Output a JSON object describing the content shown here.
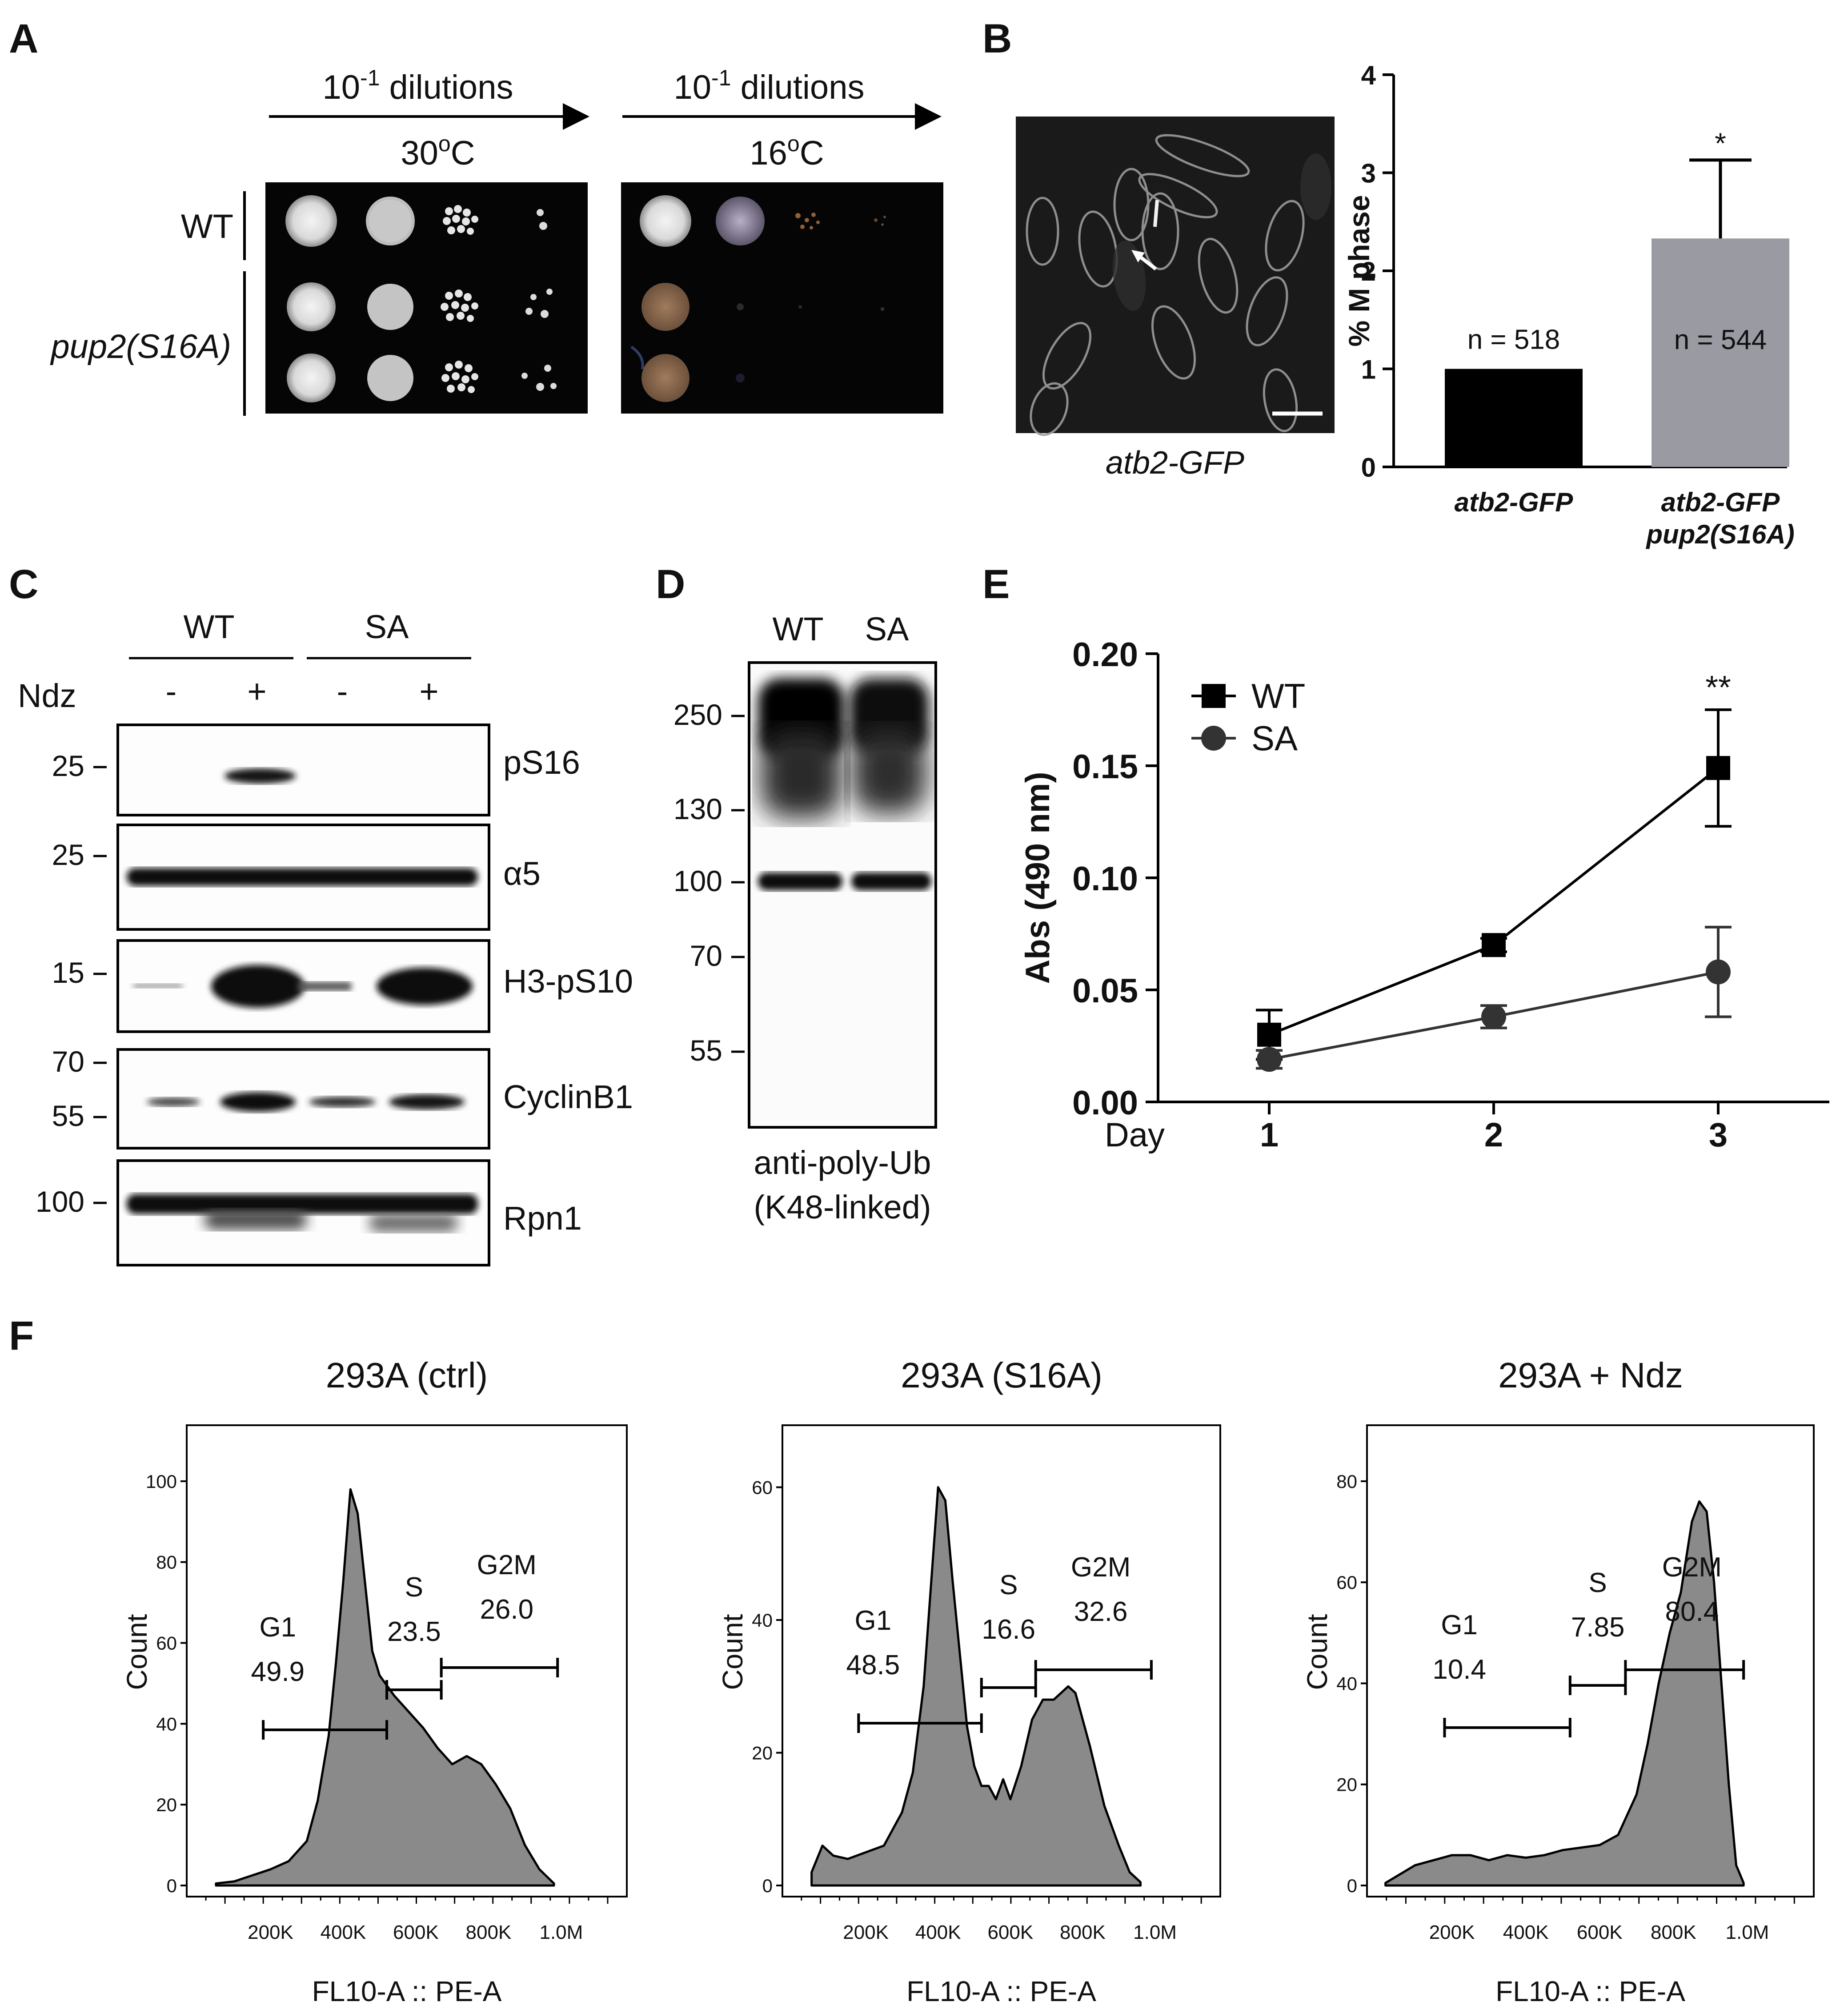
{
  "panel_letters": {
    "a": "A",
    "b": "B",
    "c": "C",
    "d": "D",
    "e": "E",
    "f": "F"
  },
  "panel_a": {
    "dilution_base": "10",
    "dilution_exp": "-1",
    "dilution_text": " dilutions",
    "temp_left": "30",
    "temp_right": "16",
    "degree": "o",
    "temp_unit": "C",
    "strain_wt": "WT",
    "strain_mut": "pup2(S16A)"
  },
  "panel_b": {
    "micro_caption": "atb2-GFP",
    "chart_data": {
      "type": "bar",
      "categories": [
        "atb2-GFP",
        "atb2-GFP pup2(S16A)"
      ],
      "category_lines": [
        [
          "atb2-GFP"
        ],
        [
          "atb2-GFP",
          "pup2(S16A)"
        ]
      ],
      "values": [
        1.0,
        2.33
      ],
      "error_upper": [
        0,
        0.8
      ],
      "n_labels": [
        "n = 518",
        "n = 544"
      ],
      "significance": [
        "",
        "*"
      ],
      "ylabel": "% M phase",
      "ylim": [
        0,
        4
      ],
      "yticks": [
        "0",
        "1",
        "2",
        "3",
        "4"
      ],
      "colors": [
        "#000000",
        "#9a9aa3"
      ]
    }
  },
  "panel_c": {
    "groups": [
      "WT",
      "SA"
    ],
    "treatment_label": "Ndz",
    "treatments": [
      "-",
      "+",
      "-",
      "+"
    ],
    "blots": [
      {
        "label": "pS16",
        "markers": [
          "25"
        ]
      },
      {
        "label": "α5",
        "markers": [
          "25"
        ]
      },
      {
        "label": "H3-pS10",
        "markers": [
          "15"
        ]
      },
      {
        "label": "CyclinB1",
        "markers": [
          "70",
          "55"
        ]
      },
      {
        "label": "Rpn1",
        "markers": [
          "100"
        ]
      }
    ]
  },
  "panel_d": {
    "lanes": [
      "WT",
      "SA"
    ],
    "markers": [
      "250",
      "130",
      "100",
      "70",
      "55"
    ],
    "caption_line1": "anti-poly-Ub",
    "caption_line2": "(K48-linked)"
  },
  "panel_e": {
    "chart_data": {
      "type": "line",
      "x": [
        1,
        2,
        3
      ],
      "xticks": [
        "1",
        "2",
        "3"
      ],
      "xlabel": "Day",
      "ylabel": "Abs (490 nm)",
      "ylim": [
        0,
        0.2
      ],
      "yticks": [
        "0.00",
        "0.05",
        "0.10",
        "0.15",
        "0.20"
      ],
      "series": [
        {
          "name": "WT",
          "marker": "square",
          "color": "#000000",
          "values": [
            0.03,
            0.07,
            0.149
          ],
          "errors": [
            0.011,
            0.003,
            0.026
          ]
        },
        {
          "name": "SA",
          "marker": "circle",
          "color": "#333333",
          "values": [
            0.019,
            0.038,
            0.058
          ],
          "errors": [
            0.004,
            0.005,
            0.02
          ]
        }
      ],
      "annotation": "**",
      "legend_position": "top-left"
    }
  },
  "panel_f": {
    "chart_data": [
      {
        "type": "area",
        "title": "293A (ctrl)",
        "ylabel": "Count",
        "xlabel": "FL10-A :: PE-A",
        "xticks": [
          "200K",
          "400K",
          "600K",
          "800K",
          "1.0M"
        ],
        "xlim": [
          0,
          1150000
        ],
        "ylim": [
          0,
          110
        ],
        "yticks": [
          "0",
          "20",
          "40",
          "60",
          "80",
          "100"
        ],
        "x": [
          50000,
          100000,
          150000,
          200000,
          250000,
          300000,
          330000,
          360000,
          380000,
          400000,
          420000,
          440000,
          460000,
          480000,
          500000,
          540000,
          580000,
          620000,
          660000,
          700000,
          740000,
          780000,
          820000,
          860000,
          900000,
          940000,
          980000
        ],
        "values": [
          0.5,
          1,
          2.5,
          4,
          6,
          11,
          21,
          37,
          55,
          75,
          98,
          92,
          75,
          58,
          52,
          47,
          43,
          39,
          34,
          30,
          32,
          30,
          25,
          19,
          10,
          4,
          0.5
        ],
        "gates": [
          {
            "label": "G1",
            "value": "49.9",
            "range": [
              180000,
              520000
            ]
          },
          {
            "label": "S",
            "value": "23.5",
            "range": [
              520000,
              670000
            ]
          },
          {
            "label": "G2M",
            "value": "26.0",
            "range": [
              670000,
              990000
            ]
          }
        ]
      },
      {
        "type": "area",
        "title": "293A (S16A)",
        "ylabel": "Count",
        "xlabel": "FL10-A :: PE-A",
        "xticks": [
          "200K",
          "400K",
          "600K",
          "800K",
          "1.0M"
        ],
        "xlim": [
          0,
          1150000
        ],
        "ylim": [
          0,
          67
        ],
        "yticks": [
          "0",
          "20",
          "40",
          "60"
        ],
        "x": [
          50000,
          80000,
          110000,
          150000,
          200000,
          250000,
          300000,
          330000,
          360000,
          380000,
          400000,
          420000,
          440000,
          460000,
          480000,
          500000,
          520000,
          540000,
          560000,
          580000,
          600000,
          630000,
          660000,
          690000,
          720000,
          760000,
          780000,
          800000,
          820000,
          860000,
          900000,
          930000,
          960000
        ],
        "values": [
          2,
          6,
          4.5,
          4,
          5,
          6,
          11,
          17,
          30,
          45,
          60,
          58,
          46,
          35,
          24,
          18,
          15,
          15,
          13,
          16,
          13,
          18,
          25,
          28,
          28,
          30,
          29,
          25,
          21,
          12,
          6,
          2,
          0.5
        ],
        "gates": [
          {
            "label": "G1",
            "value": "48.5",
            "range": [
              180000,
              520000
            ]
          },
          {
            "label": "S",
            "value": "16.6",
            "range": [
              520000,
              670000
            ]
          },
          {
            "label": "G2M",
            "value": "32.6",
            "range": [
              670000,
              990000
            ]
          }
        ]
      },
      {
        "type": "area",
        "title": "293A + Ndz",
        "ylabel": "Count",
        "xlabel": "FL10-A :: PE-A",
        "xticks": [
          "200K",
          "400K",
          "600K",
          "800K",
          "1.0M"
        ],
        "xlim": [
          0,
          1150000
        ],
        "ylim": [
          0,
          88
        ],
        "yticks": [
          "0",
          "20",
          "40",
          "60",
          "80"
        ],
        "x": [
          20000,
          100000,
          150000,
          200000,
          250000,
          300000,
          350000,
          400000,
          450000,
          500000,
          550000,
          600000,
          650000,
          700000,
          730000,
          760000,
          790000,
          820000,
          850000,
          870000,
          890000,
          910000,
          930000,
          950000,
          970000,
          990000
        ],
        "values": [
          0.5,
          4,
          5,
          6,
          6,
          5,
          6,
          5.5,
          6,
          7,
          7.5,
          8,
          10,
          18,
          28,
          40,
          50,
          58,
          72,
          76,
          74,
          60,
          40,
          20,
          4,
          0.5
        ],
        "gates": [
          {
            "label": "G1",
            "value": "10.4",
            "range": [
              180000,
              520000
            ]
          },
          {
            "label": "S",
            "value": "7.85",
            "range": [
              520000,
              670000
            ]
          },
          {
            "label": "G2M",
            "value": "80.4",
            "range": [
              670000,
              990000
            ]
          }
        ]
      }
    ]
  }
}
